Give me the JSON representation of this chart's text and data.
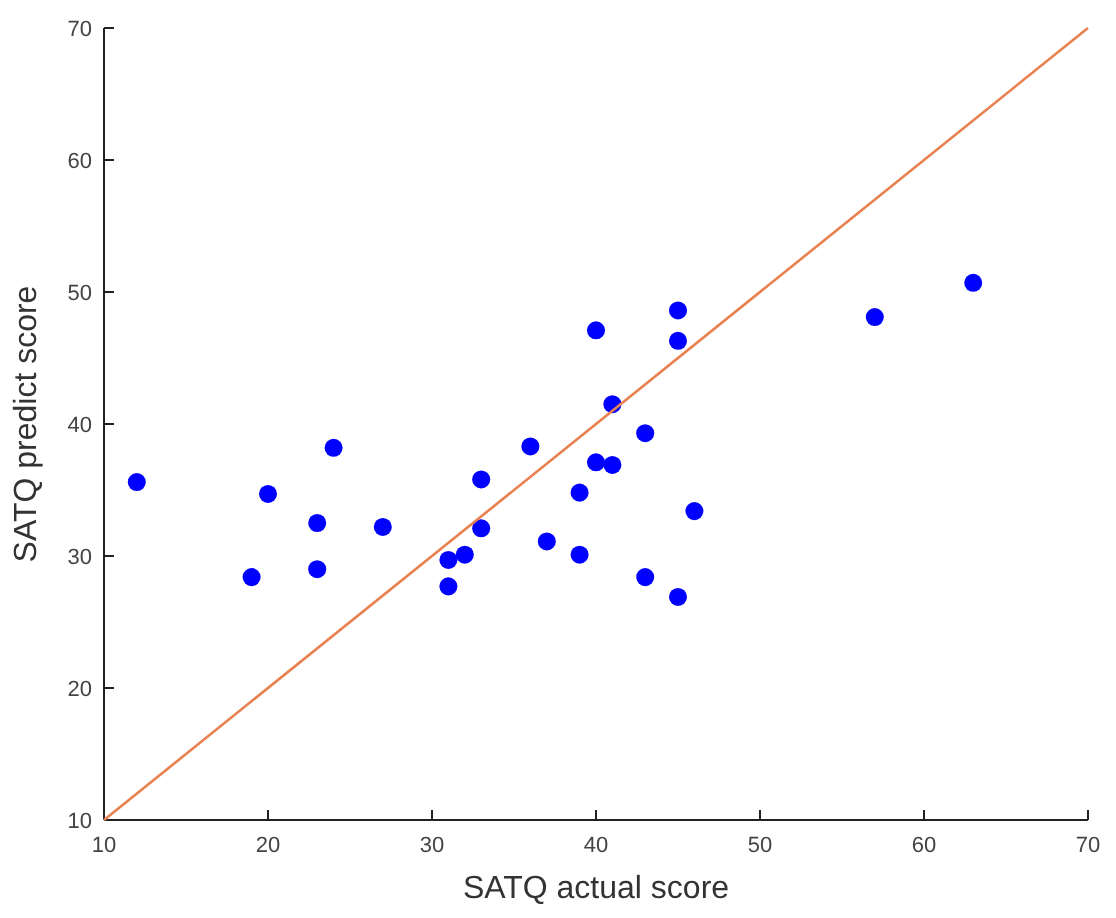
{
  "chart_data": {
    "type": "scatter",
    "xlabel": "SATQ actual score",
    "ylabel": "SATQ predict score",
    "xlim": [
      10,
      70
    ],
    "ylim": [
      10,
      70
    ],
    "xticks": [
      10,
      20,
      30,
      40,
      50,
      60,
      70
    ],
    "yticks": [
      10,
      20,
      30,
      40,
      50,
      60,
      70
    ],
    "grid": false,
    "marker": "circle",
    "series": [
      {
        "color": "#0000ff",
        "x": [
          12,
          19,
          20,
          23,
          23,
          24,
          27,
          31,
          31,
          32,
          33,
          33,
          36,
          37,
          39,
          39,
          40,
          40,
          41,
          41,
          43,
          43,
          45,
          45,
          45,
          46,
          57,
          63
        ],
        "values": [
          35.6,
          28.4,
          34.7,
          32.5,
          29,
          38.2,
          32.2,
          29.7,
          27.7,
          30.1,
          35.8,
          32.1,
          38.3,
          31.1,
          34.8,
          30.1,
          47.1,
          37.1,
          41.5,
          36.9,
          39.3,
          28.4,
          48.6,
          46.3,
          26.9,
          33.4,
          48.1,
          50.7
        ]
      },
      {
        "type": "line",
        "color": "#e8804f",
        "x": [
          10,
          70
        ],
        "values": [
          10,
          70
        ],
        "marker": "none"
      }
    ]
  }
}
